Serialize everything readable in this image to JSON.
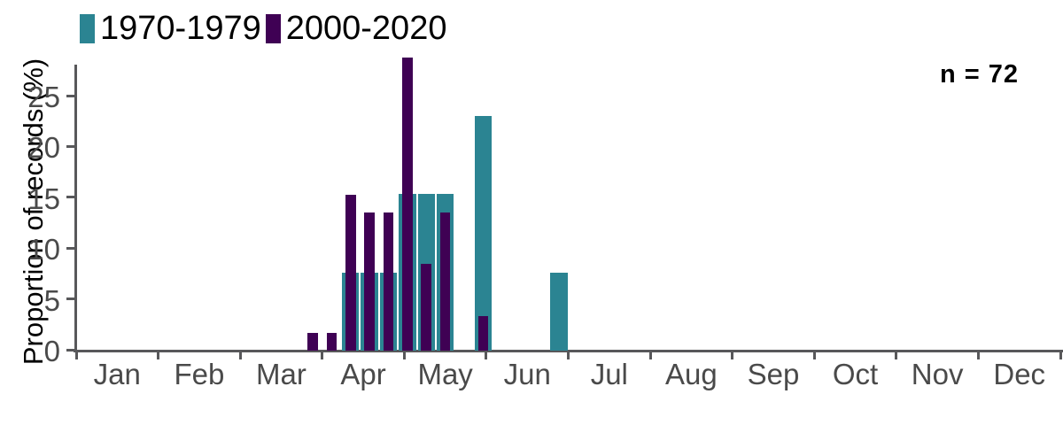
{
  "chart_data": {
    "type": "bar",
    "title": "",
    "ylabel": "Proportion of records (%)",
    "xlabel": "",
    "ylim": [
      0,
      29
    ],
    "yticks": [
      0,
      5,
      10,
      15,
      20,
      25
    ],
    "months": [
      "Jan",
      "Feb",
      "Mar",
      "Apr",
      "May",
      "Jun",
      "Jul",
      "Aug",
      "Sep",
      "Oct",
      "Nov",
      "Dec"
    ],
    "annotation": "n = 72",
    "legend_position": "top-left",
    "grid": "off",
    "x_encoding": "weekly bins; week = 0-based week index from Jan 1, 52 weeks per year; x ticks mark month boundaries",
    "bar_style": "overlaid: 2000-2020 narrower bars drawn on top of wider 1970-1979 bars",
    "series": [
      {
        "name": "1970-1979",
        "color": "#2b8492",
        "points": [
          {
            "week": 14,
            "value": 7.7
          },
          {
            "week": 15,
            "value": 7.7
          },
          {
            "week": 16,
            "value": 7.7
          },
          {
            "week": 17,
            "value": 15.4
          },
          {
            "week": 18,
            "value": 15.4
          },
          {
            "week": 19,
            "value": 15.4
          },
          {
            "week": 21,
            "value": 23.1
          },
          {
            "week": 25,
            "value": 7.7
          }
        ]
      },
      {
        "name": "2000-2020",
        "color": "#3f0154",
        "points": [
          {
            "week": 12,
            "value": 1.7
          },
          {
            "week": 13,
            "value": 1.7
          },
          {
            "week": 14,
            "value": 15.3
          },
          {
            "week": 15,
            "value": 13.6
          },
          {
            "week": 16,
            "value": 13.6
          },
          {
            "week": 17,
            "value": 28.8
          },
          {
            "week": 18,
            "value": 8.5
          },
          {
            "week": 19,
            "value": 13.6
          },
          {
            "week": 21,
            "value": 3.4
          }
        ]
      }
    ],
    "colors": {
      "axis": "#58585a",
      "tick_text": "#4a4a4a",
      "label_text": "#000000",
      "background": "#ffffff"
    }
  }
}
